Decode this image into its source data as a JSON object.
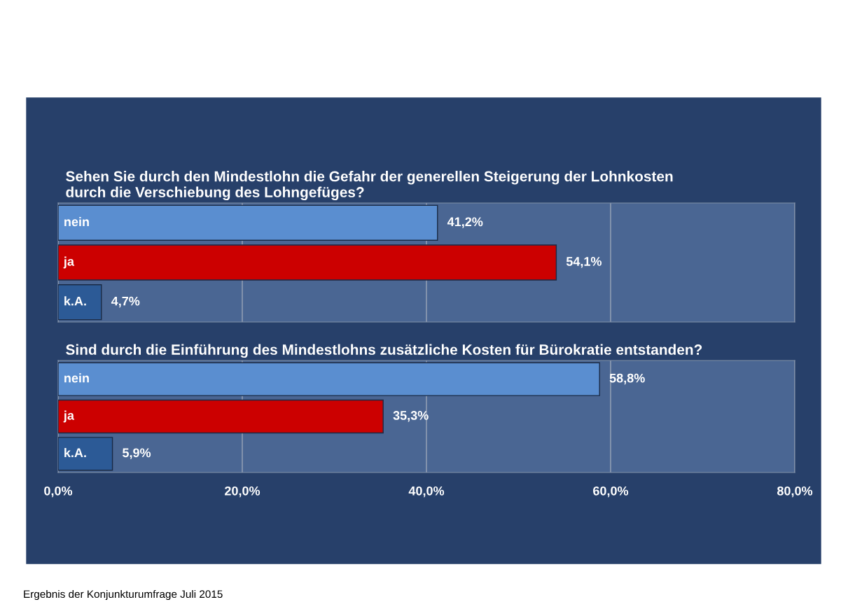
{
  "chart_data": [
    {
      "type": "bar",
      "orientation": "horizontal",
      "title": "Sehen Sie durch den Mindestlohn die Gefahr der generellen Steigerung der Lohnkosten\ndurch die Verschiebung des Lohngefüges?",
      "categories": [
        "nein",
        "ja",
        "k.A."
      ],
      "values": [
        41.2,
        54.1,
        4.7
      ],
      "colors": [
        "#5a8ed0",
        "#cc0000",
        "#2c5a96"
      ],
      "value_labels": [
        "41,2%",
        "54,1%",
        "4,7%"
      ],
      "xlim": [
        0,
        80
      ],
      "xticks": [
        {
          "value": 0,
          "label": null
        },
        {
          "value": 20,
          "label": null
        },
        {
          "value": 40,
          "label": null
        },
        {
          "value": 60,
          "label": null
        },
        {
          "value": 80,
          "label": null
        }
      ],
      "tick_labels": false,
      "grid": "x"
    },
    {
      "type": "bar",
      "orientation": "horizontal",
      "title": "Sind durch die Einführung des Mindestlohns zusätzliche Kosten für Bürokratie entstanden?",
      "categories": [
        "nein",
        "ja",
        "k.A."
      ],
      "values": [
        58.8,
        35.3,
        5.9
      ],
      "colors": [
        "#5a8ed0",
        "#cc0000",
        "#2c5a96"
      ],
      "value_labels": [
        "58,8%",
        "35,3%",
        "5,9%"
      ],
      "xlim": [
        0,
        80
      ],
      "xticks": [
        {
          "value": 0,
          "label": "0,0%"
        },
        {
          "value": 20,
          "label": "20,0%"
        },
        {
          "value": 40,
          "label": "40,0%"
        },
        {
          "value": 60,
          "label": "60,0%"
        },
        {
          "value": 80,
          "label": "80,0%"
        }
      ],
      "tick_labels": "x",
      "grid": "x",
      "annotations": [
        "Ergebnis der Konjunkturumfrage Juli 2015"
      ]
    }
  ]
}
